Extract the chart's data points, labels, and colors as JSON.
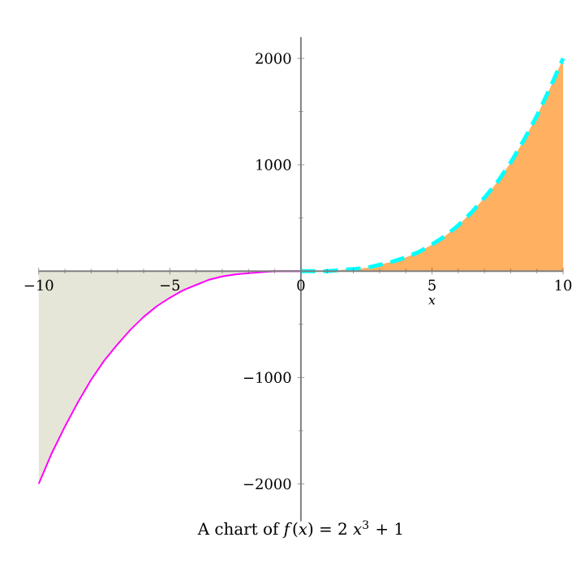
{
  "chart_data": {
    "type": "area",
    "title": "A chart of *f*(*x*) = 2 *x*$^{3}$ + 1",
    "xlabel": "*x*",
    "xlim": [
      -10,
      10
    ],
    "ylim": [
      -2350,
      2200
    ],
    "xticks": [
      {
        "value": -10,
        "label": "−10"
      },
      {
        "value": -5,
        "label": "−5"
      },
      0,
      5,
      10
    ],
    "yticks": [
      {
        "value": -2000,
        "label": "−2000"
      },
      {
        "value": -1000,
        "label": "−1000"
      },
      {
        "value": 0,
        "label": null
      },
      1000,
      2000
    ],
    "grid": false,
    "series": [
      {
        "color": "#e6e6d8",
        "line_style": "solid",
        "x": [
          -10,
          -9.5,
          -9,
          -8.5,
          -8,
          -7.5,
          -7,
          -6.5,
          -6,
          -5.5,
          -5,
          -4.5,
          -4,
          -3.5,
          -3,
          -2.5,
          -2,
          -1.5,
          -1,
          -0.5,
          0
        ],
        "values": [
          -2000,
          -1710,
          -1460,
          -1230,
          -1020,
          -840,
          -690,
          -550,
          -430,
          -330,
          -250,
          -180,
          -130,
          -80,
          -50,
          -30,
          -20,
          -10,
          0,
          0,
          0
        ]
      },
      {
        "color": "#ffb060",
        "line_style": "dashed",
        "x": [
          0,
          0.5,
          1,
          1.5,
          2,
          2.5,
          3,
          3.5,
          4,
          4.5,
          5,
          5.5,
          6,
          6.5,
          7,
          7.5,
          8,
          8.5,
          9,
          9.5,
          10
        ],
        "values": [
          0,
          0,
          0,
          10,
          20,
          30,
          60,
          90,
          130,
          180,
          250,
          330,
          430,
          550,
          690,
          840,
          1020,
          1230,
          1460,
          1720,
          2000
        ]
      }
    ]
  }
}
